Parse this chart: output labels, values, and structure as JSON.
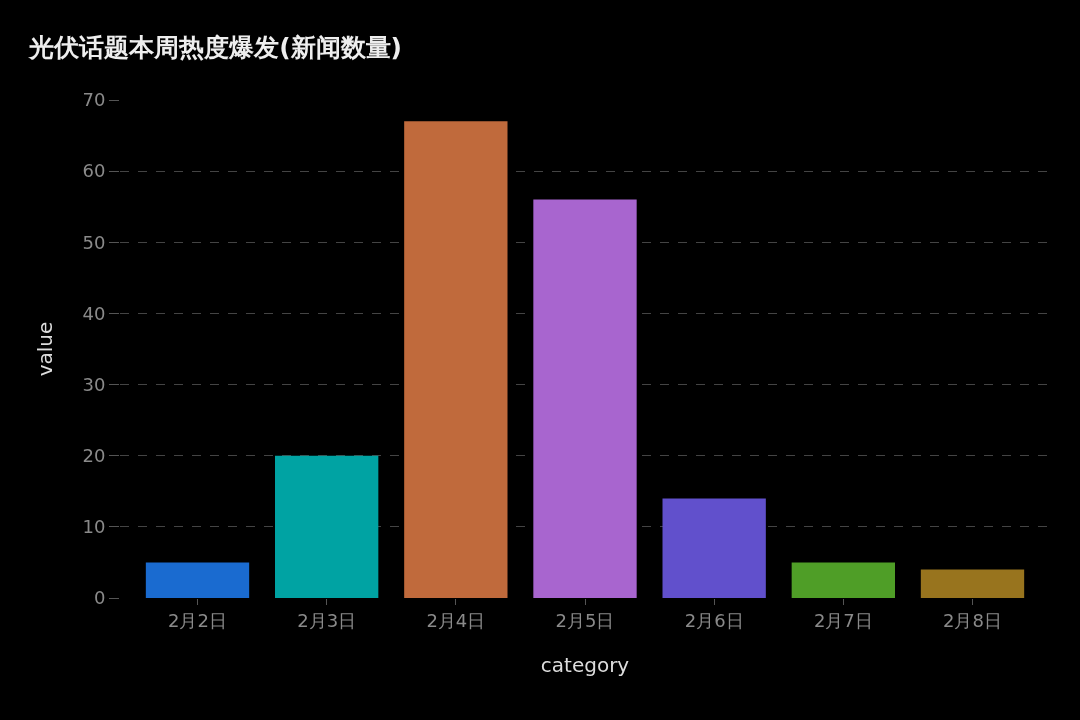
{
  "chart_data": {
    "type": "bar",
    "title": "光伏话题本周热度爆发(新闻数量)",
    "xlabel": "category",
    "ylabel": "value",
    "categories": [
      "2月2日",
      "2月3日",
      "2月4日",
      "2月5日",
      "2月6日",
      "2月7日",
      "2月8日"
    ],
    "values": [
      5,
      20,
      67,
      56,
      14,
      5,
      4
    ],
    "colors": [
      "#1a6bd0",
      "#00a3a3",
      "#c06a3c",
      "#a865cf",
      "#6150cc",
      "#4f9e27",
      "#98741e"
    ],
    "ylim": [
      0,
      70
    ],
    "yticks": [
      0,
      10,
      20,
      30,
      40,
      50,
      60,
      70
    ],
    "grid": "y"
  }
}
